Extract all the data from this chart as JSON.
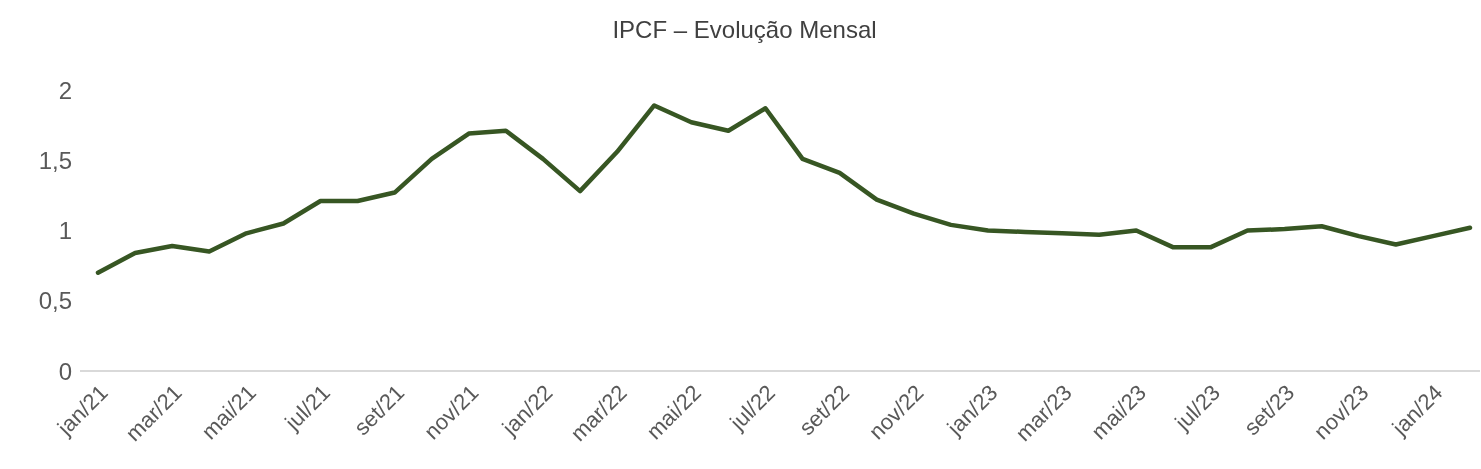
{
  "chart_data": {
    "type": "line",
    "title": "IPCF – Evolução Mensal",
    "categories": [
      "jan/21",
      null,
      "mar/21",
      null,
      "mai/21",
      null,
      "jul/21",
      null,
      "set/21",
      null,
      "nov/21",
      null,
      "jan/22",
      null,
      "mar/22",
      null,
      "mai/22",
      null,
      "jul/22",
      null,
      "set/22",
      null,
      "nov/22",
      null,
      "jan/23",
      null,
      "mar/23",
      null,
      "mai/23",
      null,
      "jul/23",
      null,
      "set/23",
      null,
      "nov/23",
      null,
      "jan/24",
      null
    ],
    "series": [
      {
        "color": "#375623",
        "values": [
          0.7,
          0.84,
          0.89,
          0.85,
          0.98,
          1.05,
          1.21,
          1.21,
          1.27,
          1.51,
          1.69,
          1.71,
          1.51,
          1.28,
          1.56,
          1.89,
          1.77,
          1.71,
          1.87,
          1.51,
          1.41,
          1.22,
          1.12,
          1.04,
          1.0,
          0.99,
          0.98,
          0.97,
          1.0,
          0.88,
          0.88,
          1.0,
          1.01,
          1.03,
          0.96,
          0.9,
          0.96,
          1.02
        ]
      }
    ],
    "ylim": [
      0,
      2
    ],
    "yticks": [
      0,
      {
        "value": 0.5,
        "label": "0,5"
      },
      1,
      {
        "value": 1.5,
        "label": "1,5"
      },
      2
    ],
    "grid": false,
    "marker": "none",
    "line_style": "solid"
  }
}
